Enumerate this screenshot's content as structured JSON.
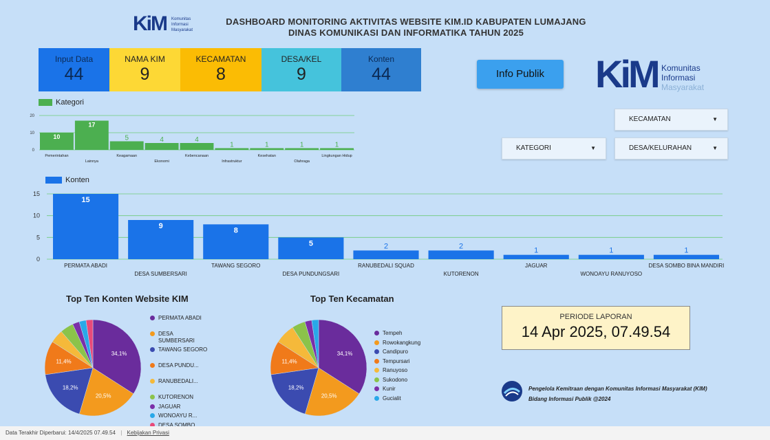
{
  "header": {
    "title_line1": "DASHBOARD MONITORING AKTIVITAS WEBSITE KIM.ID KABUPATEN LUMAJANG",
    "title_line2": "DINAS KOMUNIKASI DAN INFORMATIKA TAHUN 2025",
    "logo_small": {
      "mark": "KiM",
      "line1": "Komunitas",
      "line2": "Informasi",
      "line3": "Masyarakat"
    }
  },
  "kpis": [
    {
      "label": "Input Data",
      "value": "44",
      "color": "#1a73e8",
      "text_color": "#0b2a55"
    },
    {
      "label": "NAMA KIM",
      "value": "9",
      "color": "#fdd835",
      "text_color": "#222222"
    },
    {
      "label": "KECAMATAN",
      "value": "8",
      "color": "#fbbc04",
      "text_color": "#222222"
    },
    {
      "label": "DESA/KEL",
      "value": "9",
      "color": "#45c3dc",
      "text_color": "#222222"
    },
    {
      "label": "Konten",
      "value": "44",
      "color": "#2f7fd0",
      "text_color": "#0b2a55"
    }
  ],
  "info_button": "Info Publik",
  "logo_big": {
    "mark": "KiM",
    "line1": "Komunitas",
    "line2": "Informasi",
    "line3": "Masyarakat"
  },
  "filters": {
    "kecamatan": "KECAMATAN",
    "kategori": "KATEGORI",
    "desa": "DESA/KELURAHAN"
  },
  "chart_data": [
    {
      "type": "bar",
      "title": "",
      "legend": "Kategori",
      "color": "#4caf50",
      "categories": [
        "Pemerintahan",
        "Lainnya",
        "Keagamaan",
        "Ekonomi",
        "Kebencanaan",
        "Infrastruktur",
        "Kesehatan",
        "Olahraga",
        "Lingkungan Hidup"
      ],
      "values": [
        10,
        17,
        5,
        4,
        4,
        1,
        1,
        1,
        1
      ],
      "yticks": [
        "0",
        "10",
        "20"
      ],
      "ylim": [
        0,
        20
      ]
    },
    {
      "type": "bar",
      "title": "",
      "legend": "Konten",
      "color": "#1a73e8",
      "categories": [
        "PERMATA ABADI",
        "DESA SUMBERSARI",
        "TAWANG SEGORO",
        "DESA PUNDUNGSARI",
        "RANUBEDALI SQUAD",
        "KUTORENON",
        "JAGUAR",
        "WONOAYU RANUYOSO",
        "DESA SOMBO BINA MANDIRI"
      ],
      "values": [
        15,
        9,
        8,
        5,
        2,
        2,
        1,
        1,
        1
      ],
      "yticks": [
        "0",
        "5",
        "10",
        "15"
      ],
      "ylim": [
        0,
        15
      ]
    },
    {
      "type": "pie",
      "title": "Top Ten Konten Website KIM",
      "labels": [
        "PERMATA ABADI",
        "DESA SUMBERSARI",
        "TAWANG SEGORO",
        "DESA PUNDU...",
        "RANUBEDALI...",
        "KUTORENON",
        "JAGUAR",
        "WONOAYU R...",
        "DESA SOMBO..."
      ],
      "values": [
        34.1,
        20.5,
        18.2,
        11.4,
        4.5,
        4.5,
        2.3,
        2.3,
        2.3
      ],
      "pct_labels": [
        "34,1%",
        "20,5%",
        "18,2%",
        "11,4%"
      ],
      "colors": [
        "#6a2c9c",
        "#f39a1e",
        "#3b4bb0",
        "#f07a1a",
        "#f5b93a",
        "#8bc34a",
        "#7b2fa8",
        "#29a8e8",
        "#e84a7a"
      ]
    },
    {
      "type": "pie",
      "title": "Top Ten Kecamatan",
      "labels": [
        "Tempeh",
        "Rowokangkung",
        "Candipuro",
        "Tempursari",
        "Ranuyoso",
        "Sukodono",
        "Kunir",
        "Gucialit"
      ],
      "values": [
        34.1,
        20.5,
        18.2,
        11.4,
        6.8,
        4.5,
        2.3,
        2.3
      ],
      "pct_labels": [
        "34,1%",
        "20,5%",
        "18,2%",
        "11,4%"
      ],
      "colors": [
        "#6a2c9c",
        "#f39a1e",
        "#3b4bb0",
        "#f07a1a",
        "#f5b93a",
        "#8bc34a",
        "#7b2fa8",
        "#29a8e8"
      ]
    }
  ],
  "periode": {
    "label": "PERIODE LAPORAN",
    "value": "14 Apr 2025, 07.49.54"
  },
  "credit": {
    "line1": "Pengelola Kemitraan dengan Komunitas Informasi Masyarakat (KIM)",
    "line2": "Bidang Informasi Publik @2024"
  },
  "footer": {
    "updated": "Data Terakhir Diperbarui: 14/4/2025 07.49.54",
    "privacy": "Kebijakan Privasi"
  }
}
